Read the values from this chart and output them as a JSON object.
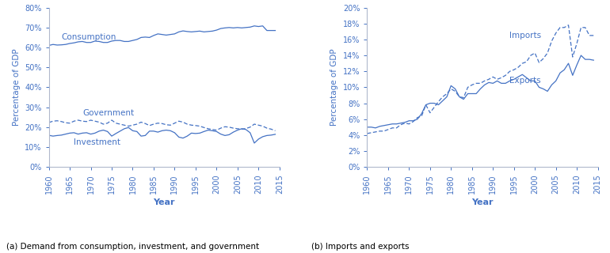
{
  "years": [
    1960,
    1961,
    1962,
    1963,
    1964,
    1965,
    1966,
    1967,
    1968,
    1969,
    1970,
    1971,
    1972,
    1973,
    1974,
    1975,
    1976,
    1977,
    1978,
    1979,
    1980,
    1981,
    1982,
    1983,
    1984,
    1985,
    1986,
    1987,
    1988,
    1989,
    1990,
    1991,
    1992,
    1993,
    1994,
    1995,
    1996,
    1997,
    1998,
    1999,
    2000,
    2001,
    2002,
    2003,
    2004,
    2005,
    2006,
    2007,
    2008,
    2009,
    2010,
    2011,
    2012,
    2013,
    2014
  ],
  "consumption": [
    61.0,
    61.5,
    61.2,
    61.3,
    61.5,
    62.0,
    62.3,
    62.8,
    63.0,
    62.5,
    62.5,
    63.2,
    63.0,
    62.5,
    62.5,
    63.2,
    63.5,
    63.5,
    63.0,
    63.0,
    63.5,
    64.0,
    65.0,
    65.2,
    65.0,
    66.0,
    66.8,
    66.5,
    66.2,
    66.5,
    66.8,
    67.8,
    68.3,
    68.0,
    67.8,
    68.0,
    68.2,
    67.8,
    68.0,
    68.2,
    68.7,
    69.5,
    69.8,
    70.0,
    69.8,
    70.0,
    69.8,
    70.0,
    70.2,
    70.8,
    70.5,
    70.8,
    68.5,
    68.5,
    68.5
  ],
  "government": [
    22.3,
    23.0,
    23.2,
    22.8,
    22.2,
    22.0,
    23.0,
    23.5,
    23.0,
    22.8,
    23.5,
    23.0,
    22.5,
    21.5,
    22.0,
    23.5,
    22.0,
    21.5,
    21.0,
    20.5,
    21.0,
    21.5,
    22.5,
    21.8,
    20.8,
    21.5,
    22.0,
    21.8,
    21.2,
    21.0,
    22.0,
    23.0,
    22.5,
    21.5,
    21.0,
    20.8,
    20.5,
    19.8,
    19.2,
    18.8,
    18.5,
    19.5,
    20.2,
    20.0,
    19.5,
    19.2,
    19.0,
    19.3,
    20.0,
    21.5,
    21.0,
    20.5,
    19.5,
    19.0,
    18.2
  ],
  "investment": [
    15.9,
    15.5,
    15.8,
    16.0,
    16.5,
    17.0,
    17.2,
    16.5,
    17.0,
    17.2,
    16.5,
    17.0,
    18.0,
    18.5,
    17.8,
    15.5,
    16.8,
    18.0,
    19.2,
    19.8,
    18.2,
    17.8,
    15.5,
    15.8,
    18.0,
    18.0,
    17.5,
    18.2,
    18.5,
    18.2,
    17.2,
    15.0,
    14.5,
    15.5,
    17.0,
    16.8,
    17.0,
    17.8,
    18.5,
    18.2,
    17.8,
    16.5,
    15.8,
    16.2,
    17.5,
    18.5,
    19.2,
    18.8,
    17.2,
    12.0,
    14.0,
    15.2,
    15.8,
    16.0,
    16.4
  ],
  "imports": [
    4.2,
    4.3,
    4.4,
    4.5,
    4.5,
    4.7,
    4.9,
    4.9,
    5.3,
    5.5,
    5.4,
    5.7,
    6.2,
    6.4,
    7.8,
    6.8,
    7.5,
    8.2,
    8.8,
    9.2,
    9.8,
    9.5,
    8.8,
    8.7,
    10.0,
    10.3,
    10.5,
    10.5,
    10.8,
    11.0,
    11.3,
    11.0,
    11.2,
    11.5,
    12.0,
    12.2,
    12.5,
    13.0,
    13.2,
    14.0,
    14.3,
    13.1,
    13.6,
    14.3,
    15.8,
    16.8,
    17.5,
    17.5,
    17.8,
    13.8,
    15.5,
    17.5,
    17.5,
    16.5,
    16.5
  ],
  "exports": [
    5.0,
    5.0,
    4.9,
    5.1,
    5.2,
    5.3,
    5.4,
    5.4,
    5.5,
    5.6,
    5.8,
    5.8,
    6.0,
    6.7,
    7.8,
    8.0,
    8.0,
    7.8,
    8.3,
    8.8,
    10.2,
    9.8,
    8.8,
    8.5,
    9.2,
    9.2,
    9.2,
    9.8,
    10.3,
    10.6,
    10.5,
    10.8,
    10.5,
    10.5,
    10.8,
    11.0,
    11.3,
    11.6,
    11.2,
    10.8,
    10.8,
    10.0,
    9.8,
    9.5,
    10.3,
    10.8,
    11.8,
    12.2,
    13.0,
    11.5,
    12.8,
    14.0,
    13.5,
    13.5,
    13.4
  ],
  "line_color": "#4472c4",
  "background_color": "#ffffff",
  "title_a": "(a) Demand from consumption, investment, and government",
  "title_b": "(b) Imports and exports",
  "xlabel": "Year",
  "ylabel": "Percentage of GDP",
  "xlim": [
    1960,
    2015
  ],
  "ylim_a": [
    0,
    80
  ],
  "ylim_b": [
    0,
    20
  ],
  "yticks_a": [
    0,
    10,
    20,
    30,
    40,
    50,
    60,
    70,
    80
  ],
  "yticks_b": [
    0,
    2,
    4,
    6,
    8,
    10,
    12,
    14,
    16,
    18,
    20
  ],
  "xticks": [
    1960,
    1965,
    1970,
    1975,
    1980,
    1985,
    1990,
    1995,
    2000,
    2005,
    2010,
    2015
  ],
  "label_consumption": "Consumption",
  "label_government": "Government",
  "label_investment": "Investment",
  "label_imports": "Imports",
  "label_exports": "Exports",
  "annot_a": {
    "consumption": [
      1963,
      63.8
    ],
    "government": [
      1968,
      25.8
    ],
    "investment": [
      1966,
      11.2
    ]
  },
  "annot_b": {
    "imports": [
      1994,
      16.2
    ],
    "exports": [
      1994,
      10.5
    ]
  }
}
